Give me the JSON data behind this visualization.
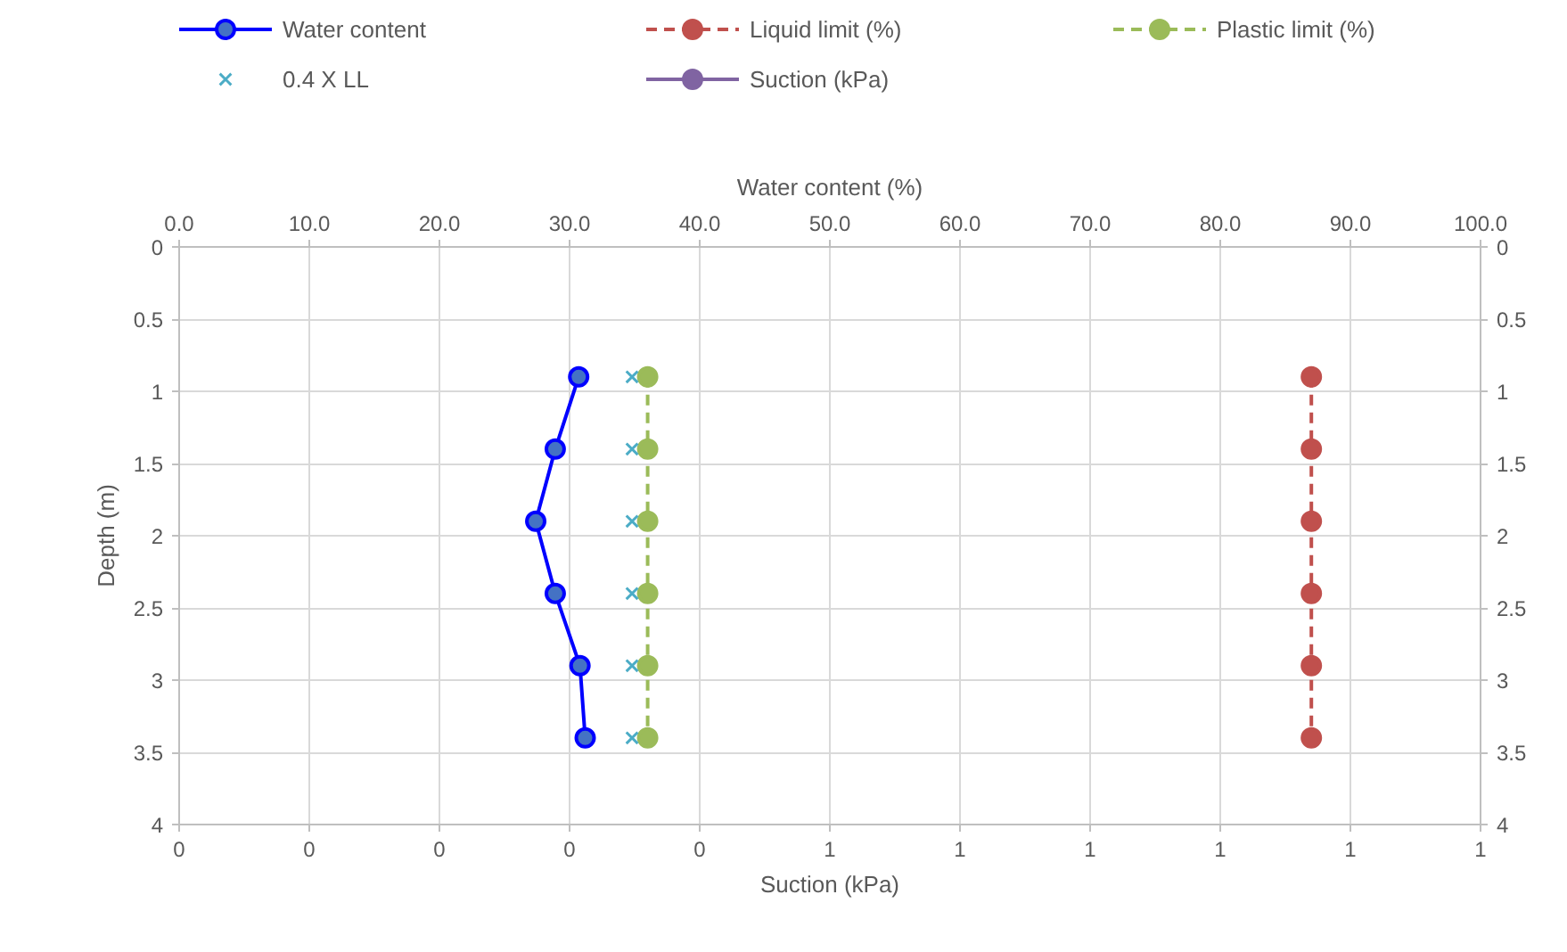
{
  "chart_data": {
    "type": "line",
    "xlabel": "Suction (kPa)",
    "x2label": "Water content (%)",
    "ylabel": "Depth (m)",
    "series": [
      {
        "name": "Water content",
        "type": "line",
        "axis": "x2",
        "color": "#0000ff",
        "marker": "circle",
        "line_style": "solid",
        "x": [
          30.7,
          28.9,
          27.4,
          28.9,
          30.8,
          31.2
        ],
        "values": [
          0.9,
          1.4,
          1.9,
          2.4,
          2.9,
          3.4
        ]
      },
      {
        "name": "Liquid limit (%)",
        "type": "line",
        "axis": "x2",
        "color": "#c0504d",
        "marker": "circle",
        "line_style": "dashed",
        "x": [
          87.0,
          87.0,
          87.0,
          87.0,
          87.0,
          87.0
        ],
        "values": [
          0.9,
          1.4,
          1.9,
          2.4,
          2.9,
          3.4
        ]
      },
      {
        "name": "Plastic limit (%)",
        "type": "line",
        "axis": "x2",
        "color": "#9bbb59",
        "marker": "circle",
        "line_style": "dashed",
        "x": [
          36.0,
          36.0,
          36.0,
          36.0,
          36.0,
          36.0
        ],
        "values": [
          0.9,
          1.4,
          1.9,
          2.4,
          2.9,
          3.4
        ]
      },
      {
        "name": "0.4 X LL",
        "type": "scatter",
        "axis": "x2",
        "color": "#4bacc6",
        "marker": "cross",
        "x": [
          34.8,
          34.8,
          34.8,
          34.8,
          34.8,
          34.8
        ],
        "values": [
          0.9,
          1.4,
          1.9,
          2.4,
          2.9,
          3.4
        ]
      },
      {
        "name": "Suction (kPa)",
        "type": "line",
        "color": "#8064a2",
        "marker": "circle",
        "line_style": "solid",
        "x": [
          null
        ],
        "values": [
          null
        ]
      }
    ],
    "xlim": [
      0,
      1
    ],
    "xticks": [
      {
        "value": 0,
        "label": "0"
      },
      {
        "value": 0.1,
        "label": "0"
      },
      {
        "value": 0.2,
        "label": "0"
      },
      {
        "value": 0.3,
        "label": "0"
      },
      {
        "value": 0.4,
        "label": "0"
      },
      {
        "value": 0.5,
        "label": "1"
      },
      {
        "value": 0.6,
        "label": "1"
      },
      {
        "value": 0.7,
        "label": "1"
      },
      {
        "value": 0.8,
        "label": "1"
      },
      {
        "value": 0.9,
        "label": "1"
      },
      {
        "value": 1,
        "label": "1"
      }
    ],
    "x2lim": [
      0,
      100
    ],
    "x2ticks": [
      {
        "value": 0,
        "label": "0.0"
      },
      {
        "value": 10,
        "label": "10.0"
      },
      {
        "value": 20,
        "label": "20.0"
      },
      {
        "value": 30,
        "label": "30.0"
      },
      {
        "value": 40,
        "label": "40.0"
      },
      {
        "value": 50,
        "label": "50.0"
      },
      {
        "value": 60,
        "label": "60.0"
      },
      {
        "value": 70,
        "label": "70.0"
      },
      {
        "value": 80,
        "label": "80.0"
      },
      {
        "value": 90,
        "label": "90.0"
      },
      {
        "value": 100,
        "label": "100.0"
      }
    ],
    "ylim": [
      4,
      0
    ],
    "yticks": [
      0,
      0.5,
      1,
      1.5,
      2,
      2.5,
      3,
      3.5,
      4
    ],
    "y2lim": [
      4,
      0
    ],
    "y2ticks": [
      0,
      0.5,
      1,
      1.5,
      2,
      2.5,
      3,
      3.5,
      4
    ],
    "grid": true,
    "legend": "top"
  }
}
